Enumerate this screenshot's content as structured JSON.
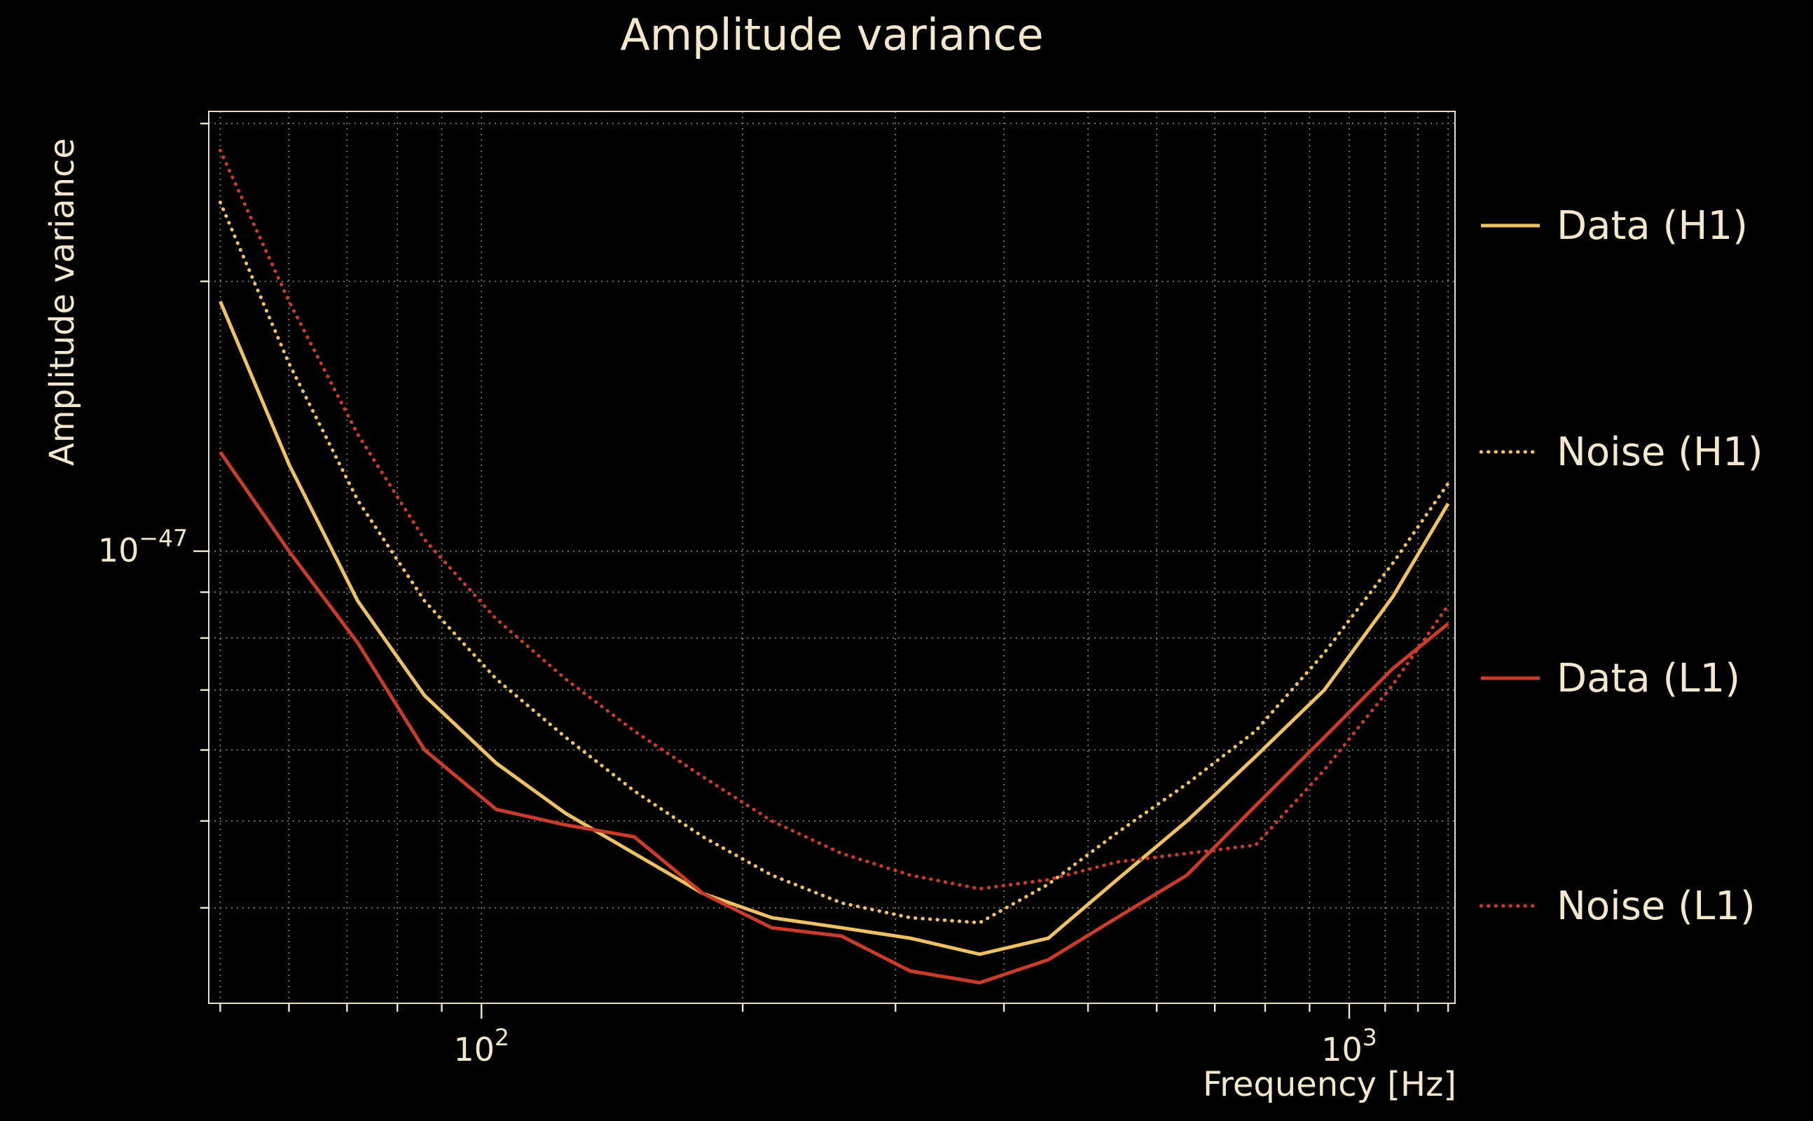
{
  "colors": {
    "background": "#000000",
    "text": "#f3e8cd",
    "grid": "#8d8678",
    "series_yellow": "#eec264",
    "series_red": "#c93b2b"
  },
  "axes": {
    "xlabel": "Frequency [Hz]",
    "ylabel": "Amplitude variance",
    "x_grid": [
      50,
      60,
      70,
      80,
      90,
      100,
      200,
      300,
      400,
      500,
      600,
      700,
      800,
      900,
      1000,
      1100,
      1200,
      1300
    ],
    "y_grid": [
      4e-48,
      5e-48,
      6e-48,
      7e-48,
      8e-48,
      9e-48,
      1e-47,
      2e-47,
      3e-47
    ],
    "x_major": [
      100,
      1000
    ],
    "y_major": [
      1e-47
    ],
    "x_ticks": [
      {
        "base": "10",
        "exp": "2",
        "value": 100
      },
      {
        "base": "10",
        "exp": "3",
        "value": 1000
      }
    ],
    "y_ticks": [
      {
        "base": "10",
        "exp": "−47",
        "value": 1e-47
      }
    ]
  },
  "chart_data": {
    "type": "line",
    "title": "Amplitude variance",
    "xlabel": "Frequency [Hz]",
    "ylabel": "Amplitude variance",
    "x_scale": "log",
    "y_scale": "log",
    "xlim": [
      48.5,
      1324
    ],
    "ylim": [
      3.13e-48,
      3.095e-47
    ],
    "grid": true,
    "legend_position": "right",
    "x": [
      50,
      60,
      72,
      86,
      104,
      125,
      150,
      180,
      216,
      260,
      312,
      375,
      450,
      540,
      650,
      780,
      936,
      1123,
      1300
    ],
    "series": [
      {
        "name": "Data (H1)",
        "color": "#eec264",
        "style": "solid",
        "values": [
          1.9e-47,
          1.25e-47,
          8.8e-48,
          6.9e-48,
          5.8e-48,
          5.1e-48,
          4.6e-48,
          4.15e-48,
          3.9e-48,
          3.8e-48,
          3.7e-48,
          3.55e-48,
          3.7e-48,
          4.3e-48,
          5e-48,
          5.9e-48,
          7e-48,
          8.9e-48,
          1.13e-47
        ]
      },
      {
        "name": "Noise (H1)",
        "color": "#eec264",
        "style": "dotted",
        "values": [
          2.45e-47,
          1.62e-47,
          1.14e-47,
          8.8e-48,
          7.2e-48,
          6.2e-48,
          5.4e-48,
          4.8e-48,
          4.35e-48,
          4.05e-48,
          3.9e-48,
          3.85e-48,
          4.25e-48,
          4.85e-48,
          5.5e-48,
          6.3e-48,
          7.7e-48,
          9.7e-48,
          1.19e-47
        ]
      },
      {
        "name": "Data (L1)",
        "color": "#c93b2b",
        "style": "solid",
        "values": [
          1.29e-47,
          1e-47,
          7.9e-48,
          6e-48,
          5.15e-48,
          4.95e-48,
          4.8e-48,
          4.15e-48,
          3.8e-48,
          3.72e-48,
          3.4e-48,
          3.3e-48,
          3.5e-48,
          3.9e-48,
          4.35e-48,
          5.2e-48,
          6.2e-48,
          7.4e-48,
          8.3e-48
        ]
      },
      {
        "name": "Noise (L1)",
        "color": "#c93b2b",
        "style": "dotted",
        "values": [
          2.8e-47,
          1.9e-47,
          1.35e-47,
          1.03e-47,
          8.4e-48,
          7.2e-48,
          6.3e-48,
          5.6e-48,
          5e-48,
          4.6e-48,
          4.35e-48,
          4.2e-48,
          4.3e-48,
          4.5e-48,
          4.6e-48,
          4.7e-48,
          5.7e-48,
          7.1e-48,
          8.7e-48
        ]
      }
    ]
  },
  "legend": {
    "items": [
      {
        "label": "Data (H1)"
      },
      {
        "label": "Noise (H1)"
      },
      {
        "label": "Data (L1)"
      },
      {
        "label": "Noise (L1)"
      }
    ]
  }
}
